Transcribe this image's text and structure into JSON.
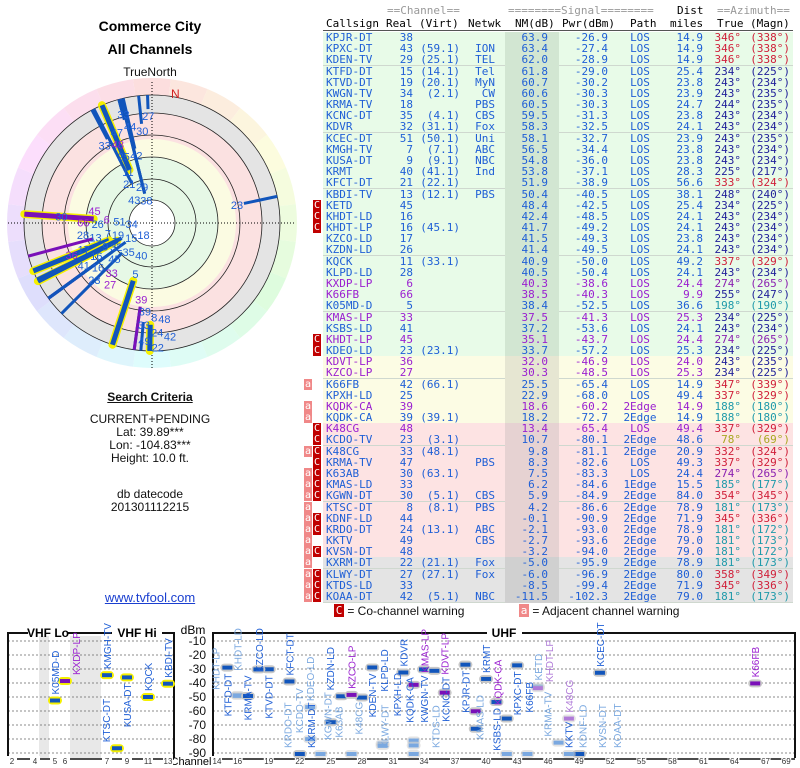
{
  "left": {
    "title": "Commerce City",
    "subtitle": "All Channels",
    "north_label": "TrueNorth",
    "n_marker": "N",
    "criteria_heading": "Search Criteria",
    "criteria": [
      "CURRENT+PENDING",
      "Lat: 39.89***",
      "Lon: -104.83***",
      "Height: 10.0 ft."
    ],
    "db_label": "db datecode",
    "db_value": "201301112215",
    "site_link": "www.tvfool.com"
  },
  "table": {
    "header_top": {
      "channel": "==Channel==",
      "signal": "========Signal========",
      "dist": "Dist",
      "azimuth": "==Azimuth=="
    },
    "header": {
      "callsign": "Callsign",
      "real": "Real",
      "virt": "(Virt)",
      "netwk": "Netwk",
      "nm": "NM(dB)",
      "pwr": "Pwr(dBm)",
      "path": "Path",
      "miles": "miles",
      "true": "True",
      "magn": "(Magn)"
    },
    "zone_colors": {
      "green": "#e8fbe8",
      "yellow": "#fcfce4",
      "pink": "#fde3e3",
      "gray": "#e4e4e4"
    },
    "rows": [
      {
        "cs": "KPJR-DT",
        "real": "38",
        "virt": "",
        "net": "",
        "nm": "63.9",
        "pwr": "-26.9",
        "path": "LOS",
        "dist": "14.9",
        "az": "346°",
        "mag": "(338°)",
        "flags": "",
        "purple": false,
        "zone": "green"
      },
      {
        "cs": "KPXC-DT",
        "real": "43",
        "virt": "(59.1)",
        "net": "ION",
        "nm": "63.4",
        "pwr": "-27.4",
        "path": "LOS",
        "dist": "14.9",
        "az": "346°",
        "mag": "(338°)",
        "flags": "",
        "purple": false,
        "zone": "green"
      },
      {
        "cs": "KDEN-TV",
        "real": "29",
        "virt": "(25.1)",
        "net": "TEL",
        "nm": "62.0",
        "pwr": "-28.9",
        "path": "LOS",
        "dist": "14.9",
        "az": "346°",
        "mag": "(338°)",
        "flags": "",
        "purple": false,
        "zone": "green"
      },
      {
        "cs": "KTFD-DT",
        "real": "15",
        "virt": "(14.1)",
        "net": "Tel",
        "nm": "61.8",
        "pwr": "-29.0",
        "path": "LOS",
        "dist": "25.4",
        "az": "234°",
        "mag": "(225°)",
        "flags": "",
        "purple": false,
        "zone": "green"
      },
      {
        "cs": "KTVD-DT",
        "real": "19",
        "virt": "(20.1)",
        "net": "MyN",
        "nm": "60.7",
        "pwr": "-30.2",
        "path": "LOS",
        "dist": "23.8",
        "az": "243°",
        "mag": "(234°)",
        "flags": "",
        "purple": false,
        "zone": "green"
      },
      {
        "cs": "KWGN-TV",
        "real": "34",
        "virt": "(2.1)",
        "net": "CW",
        "nm": "60.6",
        "pwr": "-30.3",
        "path": "LOS",
        "dist": "23.9",
        "az": "243°",
        "mag": "(235°)",
        "flags": "",
        "purple": false,
        "zone": "green"
      },
      {
        "cs": "KRMA-TV",
        "real": "18",
        "virt": "",
        "net": "PBS",
        "nm": "60.5",
        "pwr": "-30.3",
        "path": "LOS",
        "dist": "24.7",
        "az": "244°",
        "mag": "(235°)",
        "flags": "",
        "purple": false,
        "zone": "green"
      },
      {
        "cs": "KCNC-DT",
        "real": "35",
        "virt": "(4.1)",
        "net": "CBS",
        "nm": "59.5",
        "pwr": "-31.3",
        "path": "LOS",
        "dist": "23.8",
        "az": "243°",
        "mag": "(234°)",
        "flags": "",
        "purple": false,
        "zone": "green"
      },
      {
        "cs": "KDVR",
        "real": "32",
        "virt": "(31.1)",
        "net": "Fox",
        "nm": "58.3",
        "pwr": "-32.5",
        "path": "LOS",
        "dist": "24.1",
        "az": "243°",
        "mag": "(234°)",
        "flags": "",
        "purple": false,
        "zone": "green"
      },
      {
        "cs": "KCEC-DT",
        "real": "51",
        "virt": "(50.1)",
        "net": "Uni",
        "nm": "58.1",
        "pwr": "-32.7",
        "path": "LOS",
        "dist": "23.9",
        "az": "243°",
        "mag": "(235°)",
        "flags": "",
        "purple": false,
        "zone": "green"
      },
      {
        "cs": "KMGH-TV",
        "real": "7",
        "virt": "(7.1)",
        "net": "ABC",
        "nm": "56.5",
        "pwr": "-34.4",
        "path": "LOS",
        "dist": "23.8",
        "az": "243°",
        "mag": "(234°)",
        "flags": "",
        "purple": false,
        "zone": "green"
      },
      {
        "cs": "KUSA-DT",
        "real": "9",
        "virt": "(9.1)",
        "net": "NBC",
        "nm": "54.8",
        "pwr": "-36.0",
        "path": "LOS",
        "dist": "23.8",
        "az": "243°",
        "mag": "(234°)",
        "flags": "",
        "purple": false,
        "zone": "green"
      },
      {
        "cs": "KRMT",
        "real": "40",
        "virt": "(41.1)",
        "net": "Ind",
        "nm": "53.8",
        "pwr": "-37.1",
        "path": "LOS",
        "dist": "28.3",
        "az": "225°",
        "mag": "(217°)",
        "flags": "",
        "purple": false,
        "zone": "green"
      },
      {
        "cs": "KFCT-DT",
        "real": "21",
        "virt": "(22.1)",
        "net": "",
        "nm": "51.9",
        "pwr": "-38.9",
        "path": "LOS",
        "dist": "56.6",
        "az": "333°",
        "mag": "(324°)",
        "flags": "",
        "purple": false,
        "zone": "green"
      },
      {
        "cs": "KBDI-TV",
        "real": "13",
        "virt": "(12.1)",
        "net": "PBS",
        "nm": "50.4",
        "pwr": "-40.5",
        "path": "LOS",
        "dist": "38.1",
        "az": "248°",
        "mag": "(240°)",
        "flags": "",
        "purple": false,
        "zone": "green"
      },
      {
        "cs": "KETD",
        "real": "45",
        "virt": "",
        "net": "",
        "nm": "48.4",
        "pwr": "-42.5",
        "path": "LOS",
        "dist": "25.4",
        "az": "234°",
        "mag": "(225°)",
        "flags": "C",
        "purple": false,
        "zone": "green"
      },
      {
        "cs": "KHDT-LD",
        "real": "16",
        "virt": "",
        "net": "",
        "nm": "42.4",
        "pwr": "-48.5",
        "path": "LOS",
        "dist": "24.1",
        "az": "243°",
        "mag": "(234°)",
        "flags": "C",
        "purple": false,
        "zone": "green"
      },
      {
        "cs": "KHDT-LP",
        "real": "16",
        "virt": "(45.1)",
        "net": "",
        "nm": "41.7",
        "pwr": "-49.2",
        "path": "LOS",
        "dist": "24.1",
        "az": "243°",
        "mag": "(234°)",
        "flags": "C",
        "purple": false,
        "zone": "green"
      },
      {
        "cs": "KZCO-LD",
        "real": "17",
        "virt": "",
        "net": "",
        "nm": "41.5",
        "pwr": "-49.3",
        "path": "LOS",
        "dist": "23.8",
        "az": "243°",
        "mag": "(234°)",
        "flags": "",
        "purple": false,
        "zone": "green"
      },
      {
        "cs": "KZDN-LD",
        "real": "26",
        "virt": "",
        "net": "",
        "nm": "41.4",
        "pwr": "-49.5",
        "path": "LOS",
        "dist": "24.1",
        "az": "243°",
        "mag": "(234°)",
        "flags": "",
        "purple": false,
        "zone": "green"
      },
      {
        "cs": "KQCK",
        "real": "11",
        "virt": "(33.1)",
        "net": "",
        "nm": "40.9",
        "pwr": "-50.0",
        "path": "LOS",
        "dist": "49.2",
        "az": "337°",
        "mag": "(329°)",
        "flags": "",
        "purple": false,
        "zone": "green"
      },
      {
        "cs": "KLPD-LD",
        "real": "28",
        "virt": "",
        "net": "",
        "nm": "40.5",
        "pwr": "-50.4",
        "path": "LOS",
        "dist": "24.1",
        "az": "243°",
        "mag": "(234°)",
        "flags": "",
        "purple": false,
        "zone": "green"
      },
      {
        "cs": "KXDP-LP",
        "real": "6",
        "virt": "",
        "net": "",
        "nm": "40.3",
        "pwr": "-38.6",
        "path": "LOS",
        "dist": "24.4",
        "az": "274°",
        "mag": "(265°)",
        "flags": "",
        "purple": true,
        "zone": "green"
      },
      {
        "cs": "K66FB",
        "real": "66",
        "virt": "",
        "net": "",
        "nm": "38.5",
        "pwr": "-40.3",
        "path": "LOS",
        "dist": "9.9",
        "az": "255°",
        "mag": "(247°)",
        "flags": "",
        "purple": true,
        "zone": "green"
      },
      {
        "cs": "K05MD-D",
        "real": "5",
        "virt": "",
        "net": "",
        "nm": "38.4",
        "pwr": "-52.5",
        "path": "LOS",
        "dist": "36.6",
        "az": "198°",
        "mag": "(190°)",
        "flags": "",
        "purple": false,
        "zone": "green"
      },
      {
        "cs": "KMAS-LP",
        "real": "33",
        "virt": "",
        "net": "",
        "nm": "37.5",
        "pwr": "-41.3",
        "path": "LOS",
        "dist": "25.3",
        "az": "234°",
        "mag": "(225°)",
        "flags": "",
        "purple": true,
        "zone": "green"
      },
      {
        "cs": "KSBS-LD",
        "real": "41",
        "virt": "",
        "net": "",
        "nm": "37.2",
        "pwr": "-53.6",
        "path": "LOS",
        "dist": "24.1",
        "az": "243°",
        "mag": "(234°)",
        "flags": "",
        "purple": false,
        "zone": "green"
      },
      {
        "cs": "KHDT-LP",
        "real": "45",
        "virt": "",
        "net": "",
        "nm": "35.1",
        "pwr": "-43.7",
        "path": "LOS",
        "dist": "24.4",
        "az": "274°",
        "mag": "(265°)",
        "flags": "C",
        "purple": true,
        "zone": "green"
      },
      {
        "cs": "KDEO-LD",
        "real": "23",
        "virt": "(23.1)",
        "net": "",
        "nm": "33.7",
        "pwr": "-57.2",
        "path": "LOS",
        "dist": "25.3",
        "az": "234°",
        "mag": "(225°)",
        "flags": "C",
        "purple": false,
        "zone": "green"
      },
      {
        "cs": "KDVT-LP",
        "real": "36",
        "virt": "",
        "net": "",
        "nm": "32.0",
        "pwr": "-46.9",
        "path": "LOS",
        "dist": "24.0",
        "az": "243°",
        "mag": "(235°)",
        "flags": "",
        "purple": true,
        "zone": "yellow"
      },
      {
        "cs": "KZCO-LP",
        "real": "27",
        "virt": "",
        "net": "",
        "nm": "30.3",
        "pwr": "-48.5",
        "path": "LOS",
        "dist": "25.3",
        "az": "234°",
        "mag": "(225°)",
        "flags": "",
        "purple": true,
        "zone": "yellow"
      },
      {
        "cs": "K66FB",
        "real": "42",
        "virt": "(66.1)",
        "net": "",
        "nm": "25.5",
        "pwr": "-65.4",
        "path": "LOS",
        "dist": "14.9",
        "az": "347°",
        "mag": "(339°)",
        "flags": "a",
        "purple": false,
        "zone": "yellow"
      },
      {
        "cs": "KPXH-LD",
        "real": "25",
        "virt": "",
        "net": "",
        "nm": "22.9",
        "pwr": "-68.0",
        "path": "LOS",
        "dist": "49.4",
        "az": "337°",
        "mag": "(329°)",
        "flags": "",
        "purple": false,
        "zone": "yellow"
      },
      {
        "cs": "KQDK-CA",
        "real": "39",
        "virt": "",
        "net": "",
        "nm": "18.6",
        "pwr": "-60.2",
        "path": "2Edge",
        "dist": "14.9",
        "az": "188°",
        "mag": "(180°)",
        "flags": "a",
        "purple": true,
        "zone": "yellow"
      },
      {
        "cs": "KQDK-CA",
        "real": "39",
        "virt": "(39.1)",
        "net": "",
        "nm": "18.2",
        "pwr": "-72.7",
        "path": "2Edge",
        "dist": "14.9",
        "az": "188°",
        "mag": "(180°)",
        "flags": "a",
        "purple": false,
        "zone": "yellow"
      },
      {
        "cs": "K48CG",
        "real": "48",
        "virt": "",
        "net": "",
        "nm": "13.4",
        "pwr": "-65.4",
        "path": "LOS",
        "dist": "49.4",
        "az": "337°",
        "mag": "(329°)",
        "flags": "C",
        "purple": true,
        "zone": "pink"
      },
      {
        "cs": "KCDO-TV",
        "real": "23",
        "virt": "(3.1)",
        "net": "",
        "nm": "10.7",
        "pwr": "-80.1",
        "path": "2Edge",
        "dist": "48.6",
        "az": "78°",
        "mag": "(69°)",
        "flags": "C",
        "purple": false,
        "zone": "pink"
      },
      {
        "cs": "K48CG",
        "real": "33",
        "virt": "(48.1)",
        "net": "",
        "nm": "9.8",
        "pwr": "-81.1",
        "path": "2Edge",
        "dist": "20.9",
        "az": "332°",
        "mag": "(324°)",
        "flags": "aC",
        "purple": false,
        "zone": "pink"
      },
      {
        "cs": "KRMA-TV",
        "real": "47",
        "virt": "",
        "net": "PBS",
        "nm": "8.3",
        "pwr": "-82.6",
        "path": "LOS",
        "dist": "49.3",
        "az": "337°",
        "mag": "(329°)",
        "flags": "C",
        "purple": false,
        "zone": "pink"
      },
      {
        "cs": "K63AB",
        "real": "30",
        "virt": "(63.1)",
        "net": "",
        "nm": "7.5",
        "pwr": "-83.3",
        "path": "LOS",
        "dist": "24.4",
        "az": "274°",
        "mag": "(265°)",
        "flags": "aC",
        "purple": false,
        "zone": "pink"
      },
      {
        "cs": "KMAS-LD",
        "real": "33",
        "virt": "",
        "net": "",
        "nm": "6.2",
        "pwr": "-84.6",
        "path": "1Edge",
        "dist": "15.5",
        "az": "185°",
        "mag": "(177°)",
        "flags": "aC",
        "purple": false,
        "zone": "pink"
      },
      {
        "cs": "KGWN-DT",
        "real": "30",
        "virt": "(5.1)",
        "net": "CBS",
        "nm": "5.9",
        "pwr": "-84.9",
        "path": "2Edge",
        "dist": "84.0",
        "az": "354°",
        "mag": "(345°)",
        "flags": "aC",
        "purple": false,
        "zone": "pink"
      },
      {
        "cs": "KTSC-DT",
        "real": "8",
        "virt": "(8.1)",
        "net": "PBS",
        "nm": "4.2",
        "pwr": "-86.6",
        "path": "2Edge",
        "dist": "78.9",
        "az": "181°",
        "mag": "(173°)",
        "flags": "a",
        "purple": false,
        "zone": "pink"
      },
      {
        "cs": "KDNF-LD",
        "real": "44",
        "virt": "",
        "net": "",
        "nm": "-0.1",
        "pwr": "-90.9",
        "path": "2Edge",
        "dist": "71.9",
        "az": "345°",
        "mag": "(336°)",
        "flags": "aC",
        "purple": false,
        "zone": "pink"
      },
      {
        "cs": "KRDO-DT",
        "real": "24",
        "virt": "(13.1)",
        "net": "ABC",
        "nm": "-2.1",
        "pwr": "-93.0",
        "path": "2Edge",
        "dist": "78.9",
        "az": "181°",
        "mag": "(172°)",
        "flags": "aC",
        "purple": false,
        "zone": "pink"
      },
      {
        "cs": "KKTV",
        "real": "49",
        "virt": "",
        "net": "CBS",
        "nm": "-2.7",
        "pwr": "-93.6",
        "path": "2Edge",
        "dist": "79.0",
        "az": "181°",
        "mag": "(173°)",
        "flags": "a",
        "purple": false,
        "zone": "pink"
      },
      {
        "cs": "KVSN-DT",
        "real": "48",
        "virt": "",
        "net": "",
        "nm": "-3.2",
        "pwr": "-94.0",
        "path": "2Edge",
        "dist": "79.0",
        "az": "181°",
        "mag": "(172°)",
        "flags": "aC",
        "purple": false,
        "zone": "pink"
      },
      {
        "cs": "KXRM-DT",
        "real": "22",
        "virt": "(21.1)",
        "net": "Fox",
        "nm": "-5.0",
        "pwr": "-95.9",
        "path": "2Edge",
        "dist": "78.9",
        "az": "181°",
        "mag": "(173°)",
        "flags": "a",
        "purple": false,
        "zone": "gray"
      },
      {
        "cs": "KLWY-DT",
        "real": "27",
        "virt": "(27.1)",
        "net": "Fox",
        "nm": "-6.0",
        "pwr": "-96.9",
        "path": "2Edge",
        "dist": "80.0",
        "az": "358°",
        "mag": "(349°)",
        "flags": "aC",
        "purple": false,
        "zone": "gray"
      },
      {
        "cs": "KTDS-LD",
        "real": "33",
        "virt": "",
        "net": "",
        "nm": "-8.5",
        "pwr": "-99.4",
        "path": "2Edge",
        "dist": "71.9",
        "az": "345°",
        "mag": "(336°)",
        "flags": "aC",
        "purple": false,
        "zone": "gray"
      },
      {
        "cs": "KOAA-DT",
        "real": "42",
        "virt": "(5.1)",
        "net": "NBC",
        "nm": "-11.5",
        "pwr": "-102.3",
        "path": "2Edge",
        "dist": "79.0",
        "az": "181°",
        "mag": "(173°)",
        "flags": "aC",
        "purple": false,
        "zone": "gray"
      }
    ]
  },
  "legend": {
    "co_flag": "C",
    "co_label": "= Co-channel warning",
    "adj_flag": "a",
    "adj_label": "= Adjacent channel warning"
  },
  "spectrum": {
    "vhf_lo_label": "VHF Lo",
    "vhf_hi_label": "VHF Hi",
    "uhf_label": "UHF",
    "y_unit": "dBm",
    "x_label": "Channel",
    "y_ticks": [
      "-10",
      "-20",
      "-30",
      "-40",
      "-50",
      "-60",
      "-70",
      "-80",
      "-90"
    ],
    "vhf_lo_ticks": [
      "2",
      "4",
      "5",
      "6"
    ],
    "vhf_hi_ticks": [
      "7",
      "9",
      "11",
      "13"
    ],
    "uhf_ticks": [
      "14",
      "16",
      "19",
      "22",
      "25",
      "28",
      "31",
      "34",
      "37",
      "40",
      "43",
      "46",
      "49",
      "52",
      "55",
      "58",
      "61",
      "64",
      "67",
      "69"
    ]
  },
  "colors": {
    "text_blue": "#1f5fd6",
    "text_purple": "#9a1fd0",
    "co_channel": "#c00000",
    "adjacent": "#f08888",
    "vhf_halo": "#f5f500"
  }
}
